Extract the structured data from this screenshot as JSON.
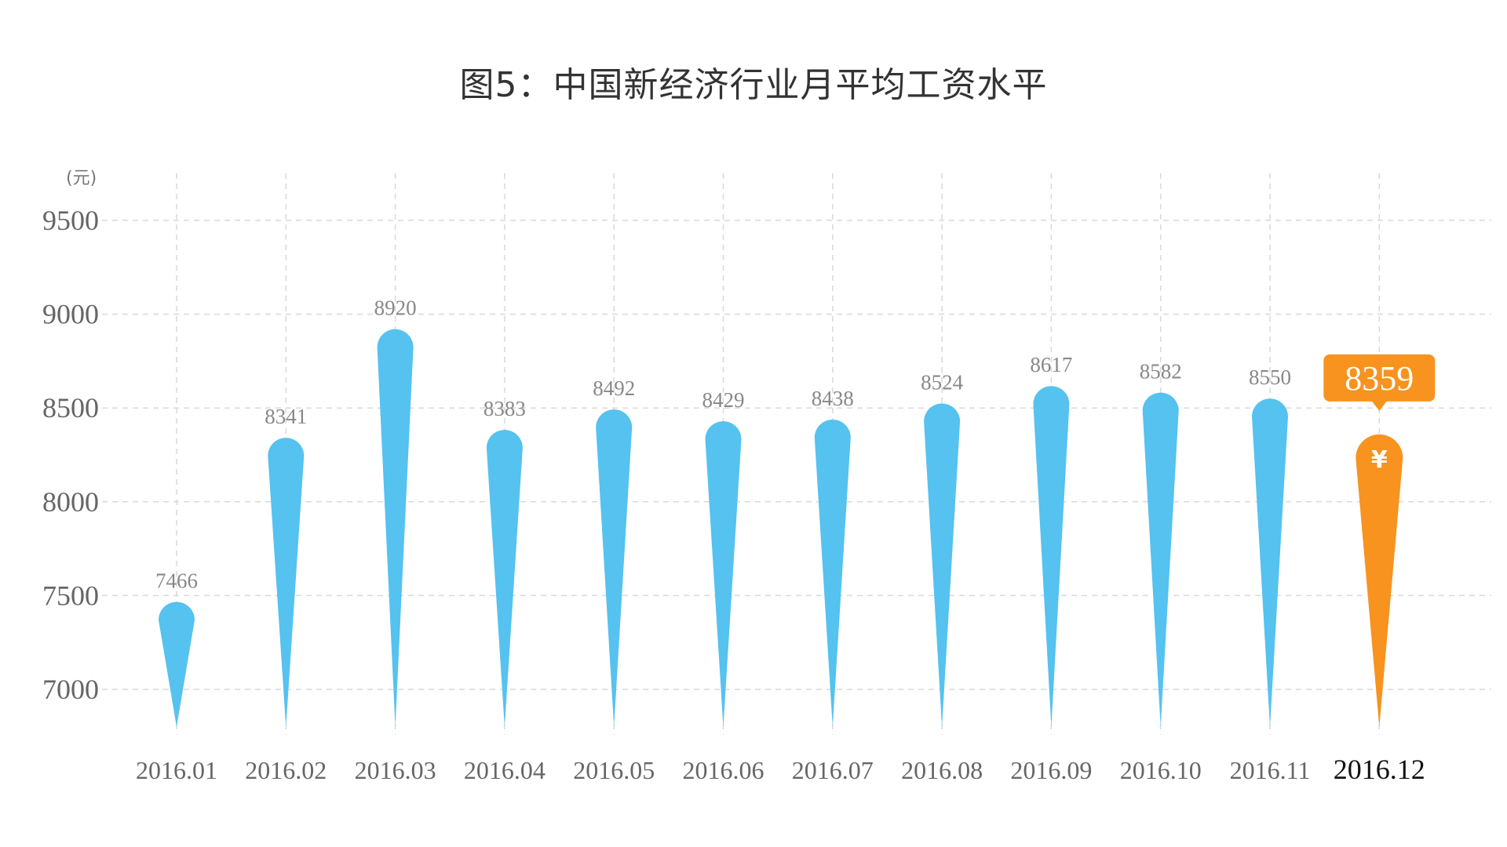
{
  "chart_data": {
    "type": "bar",
    "title": "图5：中国新经济行业月平均工资水平",
    "ylabel": "(元)",
    "xlabel": "",
    "categories": [
      "2016.01",
      "2016.02",
      "2016.03",
      "2016.04",
      "2016.05",
      "2016.06",
      "2016.07",
      "2016.08",
      "2016.09",
      "2016.10",
      "2016.11",
      "2016.12"
    ],
    "values": [
      7466,
      8341,
      8920,
      8383,
      8492,
      8429,
      8438,
      8524,
      8617,
      8582,
      8550,
      8359
    ],
    "ylim": [
      6800,
      9500
    ],
    "yticks": [
      7000,
      7500,
      8000,
      8500,
      9000,
      9500
    ],
    "grid": true,
    "highlight": {
      "category": "2016.12",
      "value": 8359,
      "icon": "yen-icon",
      "symbol": "¥"
    },
    "colors": {
      "bar": "#55C2F0",
      "highlight": "#F7931E",
      "grid": "#d9d9d9"
    }
  }
}
